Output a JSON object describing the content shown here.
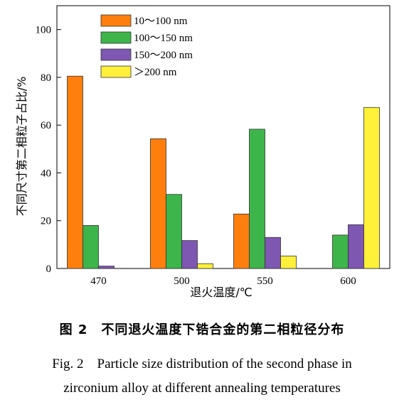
{
  "chart_data": {
    "type": "bar",
    "xlabel": "退火温度/℃",
    "ylabel": "不同尺寸第二相粒子占比/%",
    "categories": [
      "470",
      "500",
      "550",
      "600"
    ],
    "ylim": [
      0,
      110
    ],
    "yticks": [
      0,
      20,
      40,
      60,
      80,
      100
    ],
    "legend_position": "top-left",
    "grid": false,
    "series": [
      {
        "name": "10～100 nm",
        "color": "#FF7F0E",
        "values": [
          80.5,
          54.3,
          22.8,
          0
        ]
      },
      {
        "name": "100～150 nm",
        "color": "#3DB54A",
        "values": [
          18.0,
          31.0,
          58.3,
          14.0
        ]
      },
      {
        "name": "150～200 nm",
        "color": "#7E57B2",
        "values": [
          1.0,
          11.7,
          13.0,
          18.3
        ]
      },
      {
        "name": "＞200 nm",
        "color": "#FFF03A",
        "values": [
          0,
          2.0,
          5.2,
          67.4
        ]
      }
    ]
  },
  "caption": {
    "cn": "图 2　不同退火温度下锆合金的第二相粒径分布",
    "en_line1": "Fig. 2　Particle size distribution of the second phase in",
    "en_line2": "zirconium alloy at different annealing temperatures"
  }
}
